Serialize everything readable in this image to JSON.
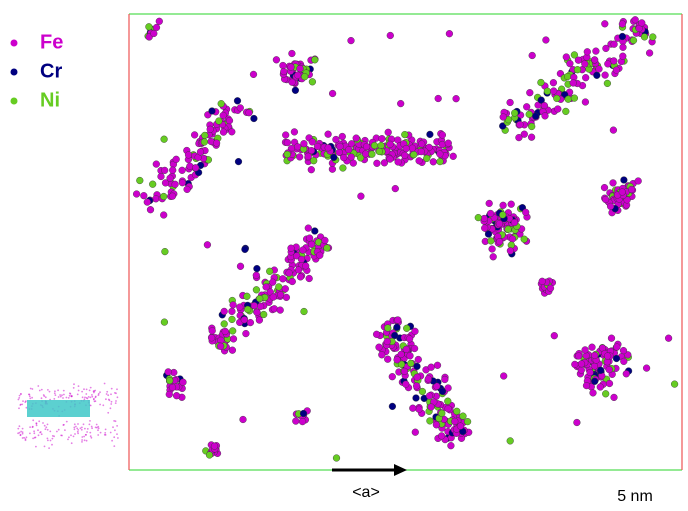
{
  "legend": [
    {
      "label": "Fe",
      "color": "#cc00cc"
    },
    {
      "label": "Cr",
      "color": "#000080"
    },
    {
      "label": "Ni",
      "color": "#66cc22"
    }
  ],
  "direction_label": "<a>",
  "scale_label": "5 nm"
}
